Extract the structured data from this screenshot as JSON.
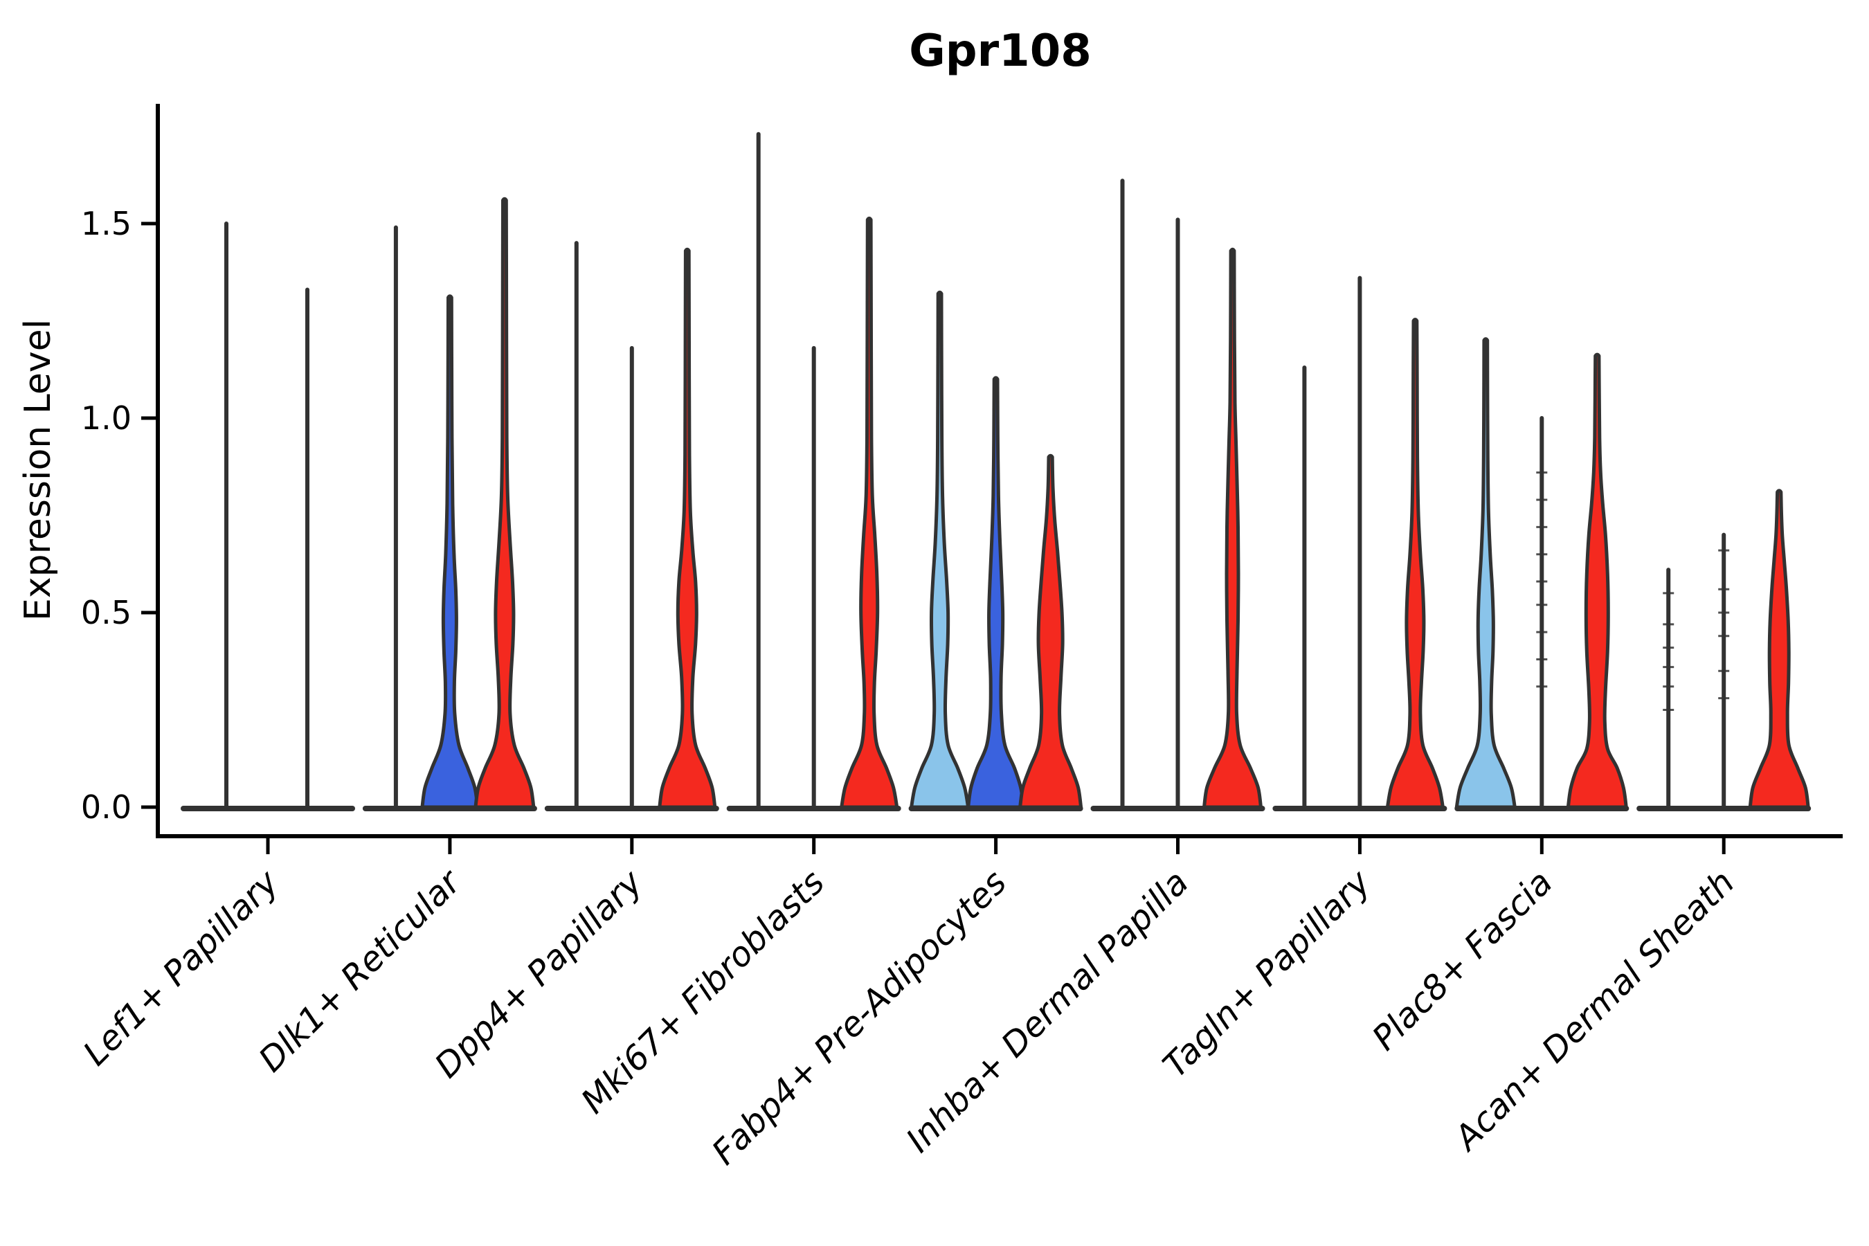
{
  "page": {
    "background": "#ffffff"
  },
  "chart_data": {
    "type": "violin",
    "title": "Gpr108",
    "xlabel": "",
    "ylabel": "Expression Level",
    "ytick_labels": [
      "0.0",
      "0.5",
      "1.0",
      "1.5"
    ],
    "ytick_values": [
      0.0,
      0.5,
      1.0,
      1.5
    ],
    "ylim": [
      -0.07,
      1.8
    ],
    "grid": false,
    "legend_position": "none",
    "palette": {
      "split_lightblue": "#8AC4EA",
      "split_darkblue": "#3A62DE",
      "split_red": "#F4291F",
      "outline": "#323232",
      "axis": "#000000"
    },
    "categories": [
      "Lef1+ Papillary",
      "Dlk1+ Reticular",
      "Dpp4+ Papillary",
      "Mki67+ Fibroblasts",
      "Fabp4+ Pre-Adipocytes",
      "Inhba+ Dermal Papilla",
      "Tagln+ Papillary",
      "Plac8+ Fascia",
      "Acan+ Dermal Sheath"
    ],
    "groups": [
      {
        "category": "Lef1+ Papillary",
        "violins": [
          {
            "offset": -60,
            "kind": "spike",
            "color": "outline",
            "max": 1.5
          },
          {
            "offset": 57,
            "kind": "spike",
            "color": "outline",
            "max": 1.33
          }
        ]
      },
      {
        "category": "Dlk1+ Reticular",
        "violins": [
          {
            "offset": -78,
            "kind": "spike",
            "color": "outline",
            "max": 1.49
          },
          {
            "offset": 0,
            "kind": "violin",
            "color": "split_darkblue",
            "max": 1.31,
            "profile": [
              [
                0,
                40
              ],
              [
                0.05,
                36
              ],
              [
                0.1,
                26
              ],
              [
                0.16,
                13
              ],
              [
                0.24,
                7
              ],
              [
                0.32,
                6.5
              ],
              [
                0.4,
                8.5
              ],
              [
                0.48,
                9.5
              ],
              [
                0.56,
                8.5
              ],
              [
                0.65,
                6
              ],
              [
                0.78,
                4
              ],
              [
                0.95,
                3
              ],
              [
                1.15,
                2.6
              ],
              [
                1.31,
                2.4
              ]
            ]
          },
          {
            "offset": 79,
            "kind": "violin",
            "color": "split_red",
            "max": 1.56,
            "profile": [
              [
                0,
                42
              ],
              [
                0.05,
                38
              ],
              [
                0.1,
                28
              ],
              [
                0.16,
                14
              ],
              [
                0.24,
                8
              ],
              [
                0.33,
                9
              ],
              [
                0.42,
                12
              ],
              [
                0.5,
                13
              ],
              [
                0.58,
                11.5
              ],
              [
                0.68,
                8
              ],
              [
                0.8,
                4.5
              ],
              [
                0.95,
                3.2
              ],
              [
                1.2,
                2.8
              ],
              [
                1.56,
                2.4
              ]
            ]
          }
        ]
      },
      {
        "category": "Dpp4+ Papillary",
        "violins": [
          {
            "offset": -80,
            "kind": "spike",
            "color": "outline",
            "max": 1.45
          },
          {
            "offset": 0,
            "kind": "spike",
            "color": "outline",
            "max": 1.18
          },
          {
            "offset": 80,
            "kind": "violin",
            "color": "split_red",
            "max": 1.43,
            "profile": [
              [
                0,
                40
              ],
              [
                0.05,
                36
              ],
              [
                0.1,
                26
              ],
              [
                0.16,
                12
              ],
              [
                0.24,
                7
              ],
              [
                0.33,
                8
              ],
              [
                0.42,
                12
              ],
              [
                0.5,
                13.5
              ],
              [
                0.58,
                12
              ],
              [
                0.66,
                8
              ],
              [
                0.76,
                4.5
              ],
              [
                0.9,
                3.2
              ],
              [
                1.1,
                2.8
              ],
              [
                1.43,
                2.4
              ]
            ]
          }
        ]
      },
      {
        "category": "Mki67+ Fibroblasts",
        "violins": [
          {
            "offset": -80,
            "kind": "spike",
            "color": "outline",
            "max": 1.73
          },
          {
            "offset": 0,
            "kind": "spike",
            "color": "outline",
            "max": 1.18
          },
          {
            "offset": 80,
            "kind": "violin",
            "color": "split_red",
            "max": 1.51,
            "profile": [
              [
                0,
                40
              ],
              [
                0.05,
                35
              ],
              [
                0.1,
                25
              ],
              [
                0.16,
                11
              ],
              [
                0.24,
                7
              ],
              [
                0.32,
                7.5
              ],
              [
                0.4,
                10
              ],
              [
                0.5,
                12
              ],
              [
                0.6,
                11
              ],
              [
                0.7,
                8
              ],
              [
                0.8,
                4.5
              ],
              [
                0.95,
                3.2
              ],
              [
                1.2,
                2.8
              ],
              [
                1.51,
                2.4
              ]
            ]
          }
        ]
      },
      {
        "category": "Fabp4+ Pre-Adipocytes",
        "violins": [
          {
            "offset": -81,
            "kind": "violin",
            "color": "split_lightblue",
            "max": 1.32,
            "profile": [
              [
                0,
                41
              ],
              [
                0.05,
                36
              ],
              [
                0.1,
                26
              ],
              [
                0.16,
                12
              ],
              [
                0.24,
                8
              ],
              [
                0.33,
                9
              ],
              [
                0.42,
                11.5
              ],
              [
                0.5,
                12
              ],
              [
                0.58,
                10
              ],
              [
                0.68,
                6.5
              ],
              [
                0.8,
                4
              ],
              [
                0.95,
                3
              ],
              [
                1.15,
                2.6
              ],
              [
                1.32,
                2.4
              ]
            ]
          },
          {
            "offset": 0,
            "kind": "violin",
            "color": "split_darkblue",
            "max": 1.1,
            "profile": [
              [
                0,
                40
              ],
              [
                0.05,
                36
              ],
              [
                0.1,
                27
              ],
              [
                0.16,
                13
              ],
              [
                0.24,
                8
              ],
              [
                0.33,
                7.5
              ],
              [
                0.42,
                9.5
              ],
              [
                0.5,
                10
              ],
              [
                0.58,
                8.5
              ],
              [
                0.68,
                6
              ],
              [
                0.8,
                3.8
              ],
              [
                0.95,
                2.8
              ],
              [
                1.1,
                2.4
              ]
            ]
          },
          {
            "offset": 79,
            "kind": "violin",
            "color": "split_red",
            "max": 0.9,
            "profile": [
              [
                0,
                44
              ],
              [
                0.05,
                40
              ],
              [
                0.1,
                30
              ],
              [
                0.16,
                17
              ],
              [
                0.24,
                13
              ],
              [
                0.33,
                15
              ],
              [
                0.42,
                17.5
              ],
              [
                0.5,
                16.5
              ],
              [
                0.58,
                13.5
              ],
              [
                0.66,
                10
              ],
              [
                0.74,
                6
              ],
              [
                0.82,
                3.5
              ],
              [
                0.9,
                2.6
              ]
            ]
          }
        ]
      },
      {
        "category": "Inhba+ Dermal Papilla",
        "violins": [
          {
            "offset": -80,
            "kind": "spike",
            "color": "outline",
            "max": 1.61
          },
          {
            "offset": 0,
            "kind": "spike",
            "color": "outline",
            "max": 1.51
          },
          {
            "offset": 79,
            "kind": "violin",
            "color": "split_red",
            "max": 1.43,
            "profile": [
              [
                0,
                41
              ],
              [
                0.05,
                37
              ],
              [
                0.1,
                26
              ],
              [
                0.16,
                11
              ],
              [
                0.24,
                6
              ],
              [
                0.35,
                6.5
              ],
              [
                0.48,
                8
              ],
              [
                0.6,
                8.5
              ],
              [
                0.72,
                8
              ],
              [
                0.84,
                6.5
              ],
              [
                0.94,
                5
              ],
              [
                1.04,
                3.5
              ],
              [
                1.2,
                2.8
              ],
              [
                1.43,
                2.4
              ]
            ]
          }
        ]
      },
      {
        "category": "Tagln+ Papillary",
        "violins": [
          {
            "offset": -80,
            "kind": "spike",
            "color": "outline",
            "max": 1.13
          },
          {
            "offset": 0,
            "kind": "spike",
            "color": "outline",
            "max": 1.36
          },
          {
            "offset": 80,
            "kind": "violin",
            "color": "split_red",
            "max": 1.25,
            "profile": [
              [
                0,
                40
              ],
              [
                0.05,
                35
              ],
              [
                0.1,
                25
              ],
              [
                0.16,
                11
              ],
              [
                0.24,
                7.5
              ],
              [
                0.32,
                9
              ],
              [
                0.4,
                11.5
              ],
              [
                0.48,
                12.5
              ],
              [
                0.56,
                11
              ],
              [
                0.65,
                7.5
              ],
              [
                0.76,
                4.5
              ],
              [
                0.9,
                3.2
              ],
              [
                1.08,
                2.8
              ],
              [
                1.25,
                2.4
              ]
            ]
          }
        ]
      },
      {
        "category": "Plac8+ Fascia",
        "violins": [
          {
            "offset": -81,
            "kind": "violin",
            "color": "split_lightblue",
            "max": 1.2,
            "profile": [
              [
                0,
                42
              ],
              [
                0.05,
                37
              ],
              [
                0.1,
                26
              ],
              [
                0.16,
                12
              ],
              [
                0.24,
                8
              ],
              [
                0.32,
                8.5
              ],
              [
                0.4,
                10.5
              ],
              [
                0.48,
                11
              ],
              [
                0.56,
                9.5
              ],
              [
                0.65,
                6.5
              ],
              [
                0.76,
                4
              ],
              [
                0.9,
                3
              ],
              [
                1.05,
                2.6
              ],
              [
                1.2,
                2.4
              ]
            ]
          },
          {
            "offset": 0,
            "kind": "spike",
            "color": "outline",
            "max": 1.0,
            "dashes": [
              0.31,
              0.38,
              0.45,
              0.52,
              0.58,
              0.65,
              0.72,
              0.79,
              0.86
            ]
          },
          {
            "offset": 80,
            "kind": "violin",
            "color": "split_red",
            "max": 1.16,
            "profile": [
              [
                0,
                42
              ],
              [
                0.05,
                38
              ],
              [
                0.1,
                29
              ],
              [
                0.15,
                15
              ],
              [
                0.22,
                11
              ],
              [
                0.3,
                12
              ],
              [
                0.4,
                15
              ],
              [
                0.5,
                16
              ],
              [
                0.6,
                15
              ],
              [
                0.7,
                12
              ],
              [
                0.78,
                8
              ],
              [
                0.86,
                5
              ],
              [
                0.95,
                3.5
              ],
              [
                1.05,
                3
              ],
              [
                1.16,
                2.6
              ]
            ]
          }
        ]
      },
      {
        "category": "Acan+ Dermal Sheath",
        "violins": [
          {
            "offset": -80,
            "kind": "spike",
            "color": "outline",
            "max": 0.61,
            "dashes": [
              0.25,
              0.31,
              0.36,
              0.41,
              0.47,
              0.55
            ]
          },
          {
            "offset": 0,
            "kind": "spike",
            "color": "outline",
            "max": 0.7,
            "dashes": [
              0.28,
              0.35,
              0.44,
              0.5,
              0.56,
              0.66
            ]
          },
          {
            "offset": 80,
            "kind": "violin",
            "color": "split_red",
            "max": 0.81,
            "profile": [
              [
                0,
                42
              ],
              [
                0.05,
                38
              ],
              [
                0.1,
                27
              ],
              [
                0.16,
                14
              ],
              [
                0.24,
                12
              ],
              [
                0.32,
                13.5
              ],
              [
                0.4,
                14
              ],
              [
                0.48,
                13
              ],
              [
                0.56,
                10.5
              ],
              [
                0.63,
                7.5
              ],
              [
                0.7,
                4.5
              ],
              [
                0.76,
                3.2
              ],
              [
                0.81,
                2.6
              ]
            ]
          }
        ]
      }
    ]
  }
}
